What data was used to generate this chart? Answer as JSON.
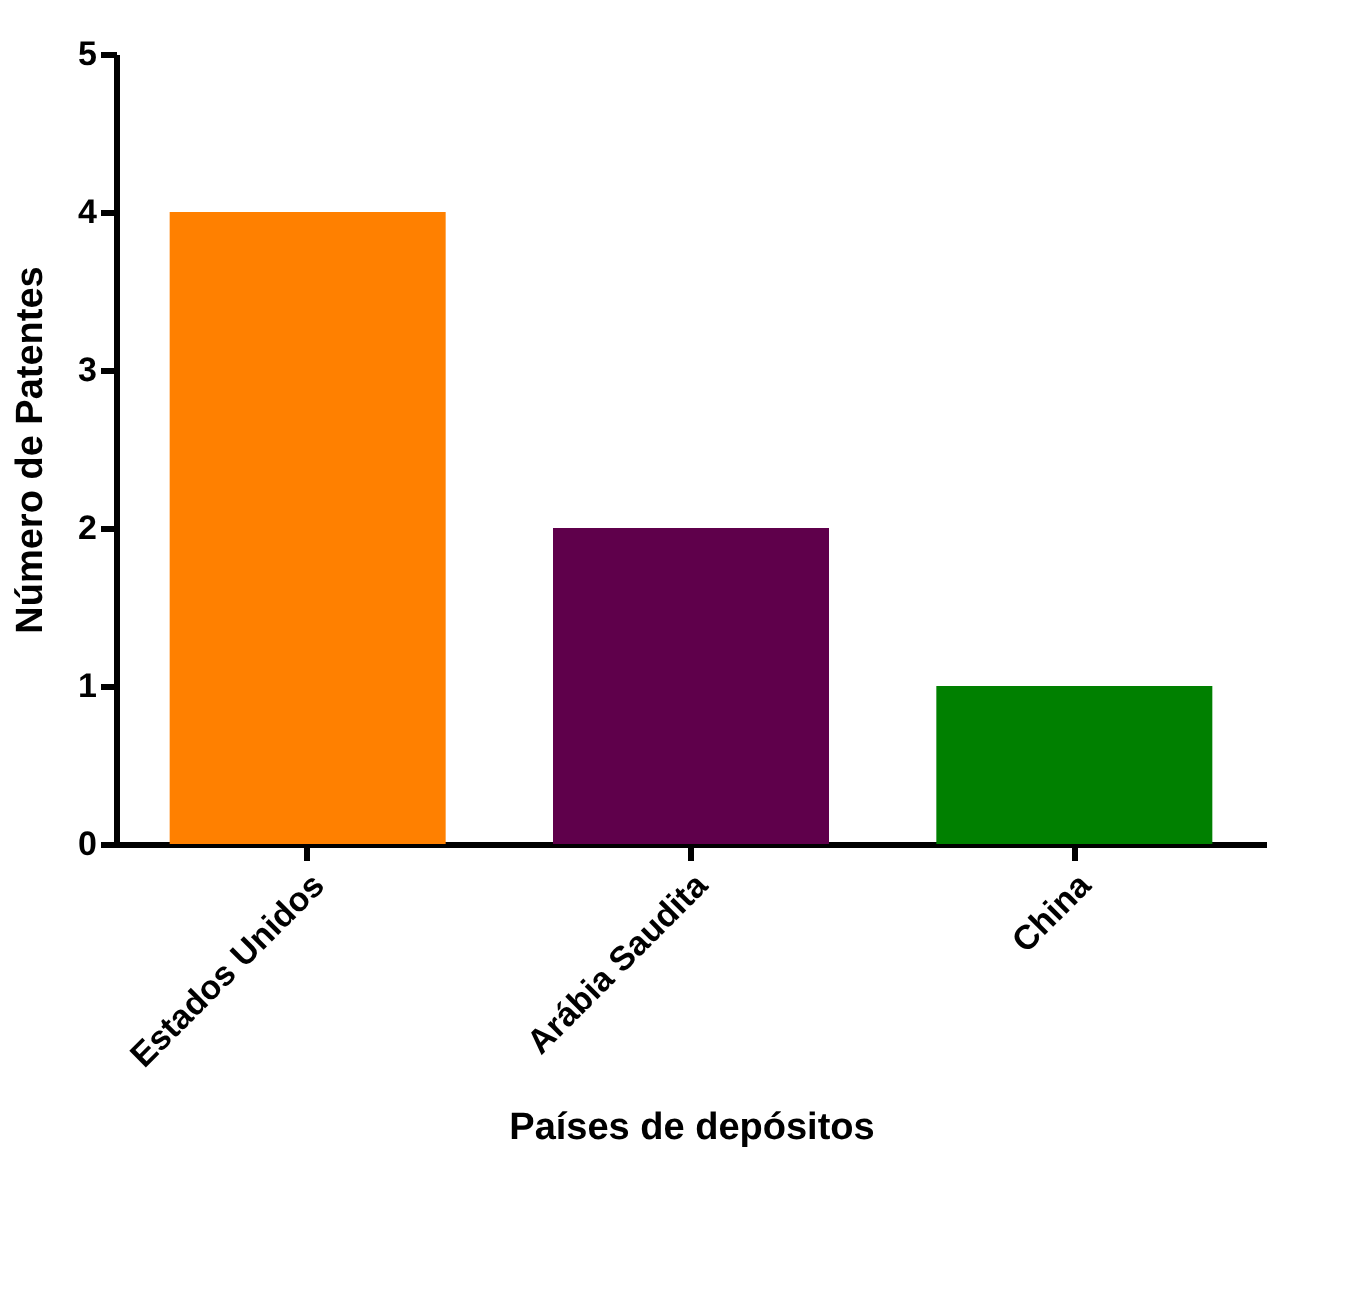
{
  "chart_data": {
    "type": "bar",
    "xlabel": "Países de depósitos",
    "ylabel": "Número de Patentes",
    "categories": [
      "Estados Unidos",
      "Arábia Saudita",
      "China"
    ],
    "values": [
      4,
      2,
      1
    ],
    "colors": [
      "#ff8000",
      "#5f004b",
      "#008000"
    ],
    "ylim": [
      0,
      5
    ],
    "yticks": [
      0,
      1,
      2,
      3,
      4,
      5
    ],
    "grid": false
  }
}
